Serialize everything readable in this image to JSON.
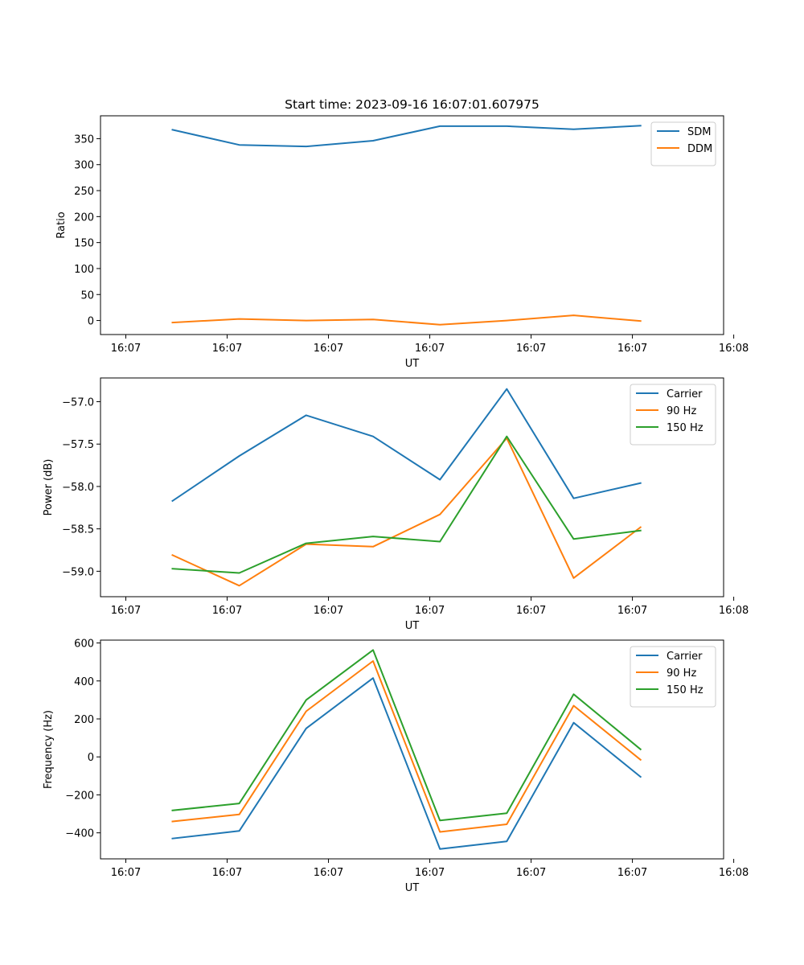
{
  "chart_data": [
    {
      "type": "line",
      "title": "Start time: 2023-09-16 16:07:01.607975",
      "xlabel": "UT",
      "ylabel": "Ratio",
      "xlim": [
        -0.125,
        2.95
      ],
      "ylim": [
        -27,
        394
      ],
      "x_ticks": [
        0,
        0.5,
        1.0,
        1.5,
        2.0,
        2.5,
        3.0
      ],
      "x_tick_labels": [
        "16:07",
        "16:07",
        "16:07",
        "16:07",
        "16:07",
        "16:07",
        "16:08"
      ],
      "y_ticks": [
        0,
        50,
        100,
        150,
        200,
        250,
        300,
        350
      ],
      "y_tick_labels": [
        "0",
        "50",
        "100",
        "150",
        "200",
        "250",
        "300",
        "350"
      ],
      "x": [
        0.23,
        0.56,
        0.89,
        1.22,
        1.55,
        1.88,
        2.21,
        2.54
      ],
      "series": [
        {
          "name": "SDM",
          "color": "#1f77b4",
          "values": [
            367,
            338,
            335,
            346,
            374,
            374,
            368,
            375
          ]
        },
        {
          "name": "DDM",
          "color": "#ff7f0e",
          "values": [
            -4,
            3,
            0,
            2,
            -8,
            0,
            10,
            -1
          ]
        }
      ],
      "legend": "top-right"
    },
    {
      "type": "line",
      "title": "",
      "xlabel": "UT",
      "ylabel": "Power (dB)",
      "xlim": [
        -0.125,
        2.95
      ],
      "ylim": [
        -59.3,
        -56.72
      ],
      "x_ticks": [
        0,
        0.5,
        1.0,
        1.5,
        2.0,
        2.5,
        3.0
      ],
      "x_tick_labels": [
        "16:07",
        "16:07",
        "16:07",
        "16:07",
        "16:07",
        "16:07",
        "16:08"
      ],
      "y_ticks": [
        -59.0,
        -58.5,
        -58.0,
        -57.5,
        -57.0
      ],
      "y_tick_labels": [
        "−59.0",
        "−58.5",
        "−58.0",
        "−57.5",
        "−57.0"
      ],
      "x": [
        0.23,
        0.56,
        0.89,
        1.22,
        1.55,
        1.88,
        2.21,
        2.54
      ],
      "series": [
        {
          "name": "Carrier",
          "color": "#1f77b4",
          "values": [
            -58.17,
            -57.64,
            -57.16,
            -57.41,
            -57.92,
            -56.85,
            -58.14,
            -57.96
          ]
        },
        {
          "name": "90 Hz",
          "color": "#ff7f0e",
          "values": [
            -58.81,
            -59.17,
            -58.68,
            -58.71,
            -58.33,
            -57.43,
            -59.08,
            -58.48
          ]
        },
        {
          "name": "150 Hz",
          "color": "#2ca02c",
          "values": [
            -58.97,
            -59.02,
            -58.67,
            -58.59,
            -58.65,
            -57.41,
            -58.62,
            -58.52
          ]
        }
      ],
      "legend": "top-right"
    },
    {
      "type": "line",
      "title": "",
      "xlabel": "UT",
      "ylabel": "Frequency (Hz)",
      "xlim": [
        -0.125,
        2.95
      ],
      "ylim": [
        -537,
        615
      ],
      "x_ticks": [
        0,
        0.5,
        1.0,
        1.5,
        2.0,
        2.5,
        3.0
      ],
      "x_tick_labels": [
        "16:07",
        "16:07",
        "16:07",
        "16:07",
        "16:07",
        "16:07",
        "16:08"
      ],
      "y_ticks": [
        -400,
        -200,
        0,
        200,
        400,
        600
      ],
      "y_tick_labels": [
        "−400",
        "−200",
        "0",
        "200",
        "400",
        "600"
      ],
      "x": [
        0.23,
        0.56,
        0.89,
        1.22,
        1.55,
        1.88,
        2.21,
        2.54
      ],
      "series": [
        {
          "name": "Carrier",
          "color": "#1f77b4",
          "values": [
            -430,
            -390,
            150,
            415,
            -485,
            -445,
            180,
            -105
          ]
        },
        {
          "name": "90 Hz",
          "color": "#ff7f0e",
          "values": [
            -340,
            -303,
            240,
            505,
            -395,
            -355,
            270,
            -15
          ]
        },
        {
          "name": "150 Hz",
          "color": "#2ca02c",
          "values": [
            -282,
            -245,
            300,
            563,
            -335,
            -297,
            330,
            40
          ]
        }
      ],
      "legend": "top-right"
    }
  ]
}
